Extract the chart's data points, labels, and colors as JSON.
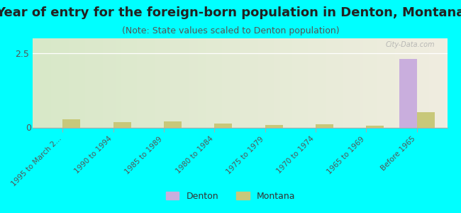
{
  "title": "Year of entry for the foreign-born population in Denton, Montana",
  "subtitle": "(Note: State values scaled to Denton population)",
  "categories": [
    "1995 to March 2...",
    "1990 to 1994",
    "1985 to 1989",
    "1980 to 1984",
    "1975 to 1979",
    "1970 to 1974",
    "1965 to 1969",
    "Before 1965"
  ],
  "denton_values": [
    0,
    0,
    0,
    0,
    0,
    0,
    0,
    2.3
  ],
  "montana_values": [
    0.28,
    0.18,
    0.22,
    0.15,
    0.1,
    0.12,
    0.08,
    0.52
  ],
  "denton_color": "#c9aedd",
  "montana_color": "#c8c87a",
  "background_color": "#00ffff",
  "gradient_left": "#d8e8c8",
  "gradient_right": "#f0ede0",
  "ylim": [
    0,
    3.0
  ],
  "yticks": [
    0,
    2.5
  ],
  "bar_width": 0.35,
  "watermark": "City-Data.com",
  "title_fontsize": 13,
  "subtitle_fontsize": 9
}
